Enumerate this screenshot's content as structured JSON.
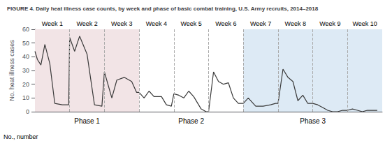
{
  "chart_data": {
    "type": "line",
    "title": "FIGURE 4. Daily heat illness case counts, by week and phase of basic combat training, U.S. Army recruits, 2014–2018",
    "ylabel": "No. heat illness cases",
    "footnote": "No., number",
    "color": "#3a3a3a",
    "xlim": [
      0,
      70
    ],
    "ylim": [
      0,
      60
    ],
    "yticks": [
      0,
      10,
      20,
      30,
      40,
      50,
      60
    ],
    "tick_labels": "y",
    "grid": false,
    "x": [
      0,
      0.5,
      1.2,
      2.0,
      3.0,
      4.0,
      5.5,
      6.8,
      7.0,
      8.0,
      9.0,
      10.5,
      12.0,
      13.5,
      14.0,
      15.5,
      16.5,
      18.0,
      19.5,
      20.5,
      21.0,
      22.0,
      23.0,
      24.0,
      25.5,
      26.5,
      27.5,
      28.0,
      29.0,
      30.0,
      31.0,
      32.0,
      33.5,
      34.5,
      35.0,
      36.0,
      37.0,
      38.0,
      39.0,
      40.0,
      41.0,
      42.0,
      43.0,
      44.5,
      46.0,
      47.5,
      48.5,
      49.0,
      50.0,
      51.0,
      52.0,
      53.0,
      54.0,
      55.0,
      56.0,
      57.0,
      58.0,
      59.0,
      60.0,
      61.0,
      62.0,
      63.0,
      64.0,
      65.0,
      66.0,
      67.0,
      68.0,
      69.0
    ],
    "values": [
      44,
      38,
      34,
      49,
      35,
      6,
      5,
      5,
      54,
      44,
      55,
      42,
      5,
      4,
      29,
      10,
      23,
      25,
      22,
      14,
      14,
      10,
      15,
      11,
      11,
      5,
      4,
      13,
      12,
      10,
      15,
      11,
      2,
      0,
      0,
      29,
      22,
      20,
      21,
      10,
      6,
      6,
      10,
      4,
      4,
      5,
      6,
      6,
      31,
      25,
      22,
      8,
      12,
      6,
      6,
      5,
      3,
      1,
      0,
      0,
      1,
      1,
      2,
      1,
      0,
      1,
      1,
      1
    ],
    "week_boundaries": [
      7,
      14,
      21,
      28,
      35,
      42,
      49,
      56,
      63
    ],
    "weeks": [
      {
        "label": "Week 1",
        "x": 3.5
      },
      {
        "label": "Week 2",
        "x": 10.5
      },
      {
        "label": "Week 3",
        "x": 17.5
      },
      {
        "label": "Week 4",
        "x": 24.5
      },
      {
        "label": "Week 5",
        "x": 31.5
      },
      {
        "label": "Week 6",
        "x": 38.5
      },
      {
        "label": "Week 7",
        "x": 45.5
      },
      {
        "label": "Week 8",
        "x": 52.5
      },
      {
        "label": "Week 9",
        "x": 59.5
      },
      {
        "label": "Week 10",
        "x": 66.5
      }
    ],
    "phases": [
      {
        "label": "Phase 1",
        "x": 10.5,
        "range": [
          0,
          21
        ],
        "color": "#f2e4e6"
      },
      {
        "label": "Phase 2",
        "x": 31.5,
        "range": [
          21,
          42
        ],
        "color": "#ffffff"
      },
      {
        "label": "Phase 3",
        "x": 56.0,
        "range": [
          42,
          70
        ],
        "color": "#ddeaf5"
      }
    ]
  }
}
